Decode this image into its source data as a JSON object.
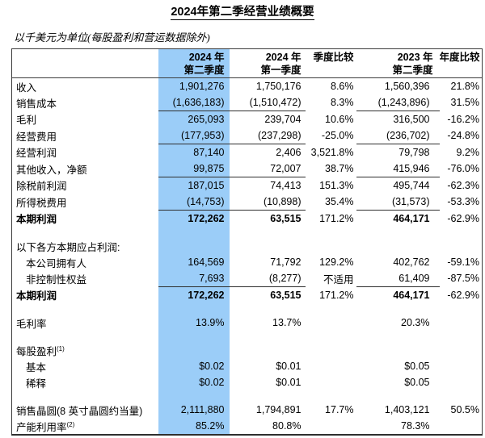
{
  "page": {
    "title": "2024年第二季经营业绩概要",
    "subtitle": "以千美元为单位(每股盈利和营运数据除外)"
  },
  "colors": {
    "highlight_blue": "#9BCDF8",
    "table_border": "#3c3c3c",
    "text": "#000000"
  },
  "table": {
    "columns": [
      {
        "id": "row-label",
        "header_line1": "",
        "header_line2": ""
      },
      {
        "id": "q2-2024",
        "header_line1": "2024 年",
        "header_line2": "第二季度",
        "highlight": true
      },
      {
        "id": "q1-2024",
        "header_line1": "2024 年",
        "header_line2": "第一季度"
      },
      {
        "id": "qoq-change",
        "header_line1": "季度比较",
        "header_line2": ""
      },
      {
        "id": "q2-2023",
        "header_line1": "2023 年",
        "header_line2": "第二季度"
      },
      {
        "id": "yoy-change",
        "header_line1": "年度比较",
        "header_line2": ""
      }
    ],
    "rows": [
      {
        "label": "收入",
        "values": [
          "1,901,276",
          "1,750,176",
          "8.6%",
          "1,560,396",
          "21.8%"
        ]
      },
      {
        "label": "销售成本",
        "underline": true,
        "values": [
          "(1,636,183)",
          "(1,510,472)",
          "8.3%",
          "(1,243,896)",
          "31.5%"
        ]
      },
      {
        "label": "毛利",
        "values": [
          "265,093",
          "239,704",
          "10.6%",
          "316,500",
          "-16.2%"
        ]
      },
      {
        "label": "经营费用",
        "underline": true,
        "values": [
          "(177,953)",
          "(237,298)",
          "-25.0%",
          "(236,702)",
          "-24.8%"
        ]
      },
      {
        "label": "经营利润",
        "values": [
          "87,140",
          "2,406",
          "3,521.8%",
          "79,798",
          "9.2%"
        ]
      },
      {
        "label": "其他收入，净额",
        "underline": true,
        "values": [
          "99,875",
          "72,007",
          "38.7%",
          "415,946",
          "-76.0%"
        ]
      },
      {
        "label": "除税前利润",
        "values": [
          "187,015",
          "74,413",
          "151.3%",
          "495,744",
          "-62.3%"
        ]
      },
      {
        "label": "所得税费用",
        "underline": true,
        "values": [
          "(14,753)",
          "(10,898)",
          "35.4%",
          "(31,573)",
          "-53.3%"
        ]
      },
      {
        "label": "本期利润",
        "bold": true,
        "values": [
          "172,262",
          "63,515",
          "171.2%",
          "464,171",
          "-62.9%"
        ]
      },
      {
        "blank": true
      },
      {
        "label": "以下各方本期应占利润:",
        "values": [
          "",
          "",
          "",
          "",
          ""
        ]
      },
      {
        "label": "本公司拥有人",
        "indent": true,
        "values": [
          "164,569",
          "71,792",
          "129.2%",
          "402,762",
          "-59.1%"
        ]
      },
      {
        "label": "非控制性权益",
        "indent": true,
        "underline": true,
        "values": [
          "7,693",
          "(8,277)",
          "不适用",
          "61,409",
          "-87.5%"
        ]
      },
      {
        "label": "本期利润",
        "bold": true,
        "values": [
          "172,262",
          "63,515",
          "171.2%",
          "464,171",
          "-62.9%"
        ]
      },
      {
        "blank": true
      },
      {
        "label": "毛利率",
        "values": [
          "13.9%",
          "13.7%",
          "",
          "20.3%",
          ""
        ]
      },
      {
        "blank": true
      },
      {
        "label": "每股盈利",
        "sup": "(1)",
        "values": [
          "",
          "",
          "",
          "",
          ""
        ]
      },
      {
        "label": "基本",
        "indent": true,
        "values": [
          "$0.02",
          "$0.01",
          "",
          "$0.05",
          ""
        ]
      },
      {
        "label": "稀释",
        "indent": true,
        "values": [
          "$0.02",
          "$0.01",
          "",
          "$0.05",
          ""
        ]
      },
      {
        "blank": true
      },
      {
        "label": "销售晶圆(8 英寸晶圆约当量)",
        "values": [
          "2,111,880",
          "1,794,891",
          "17.7%",
          "1,403,121",
          "50.5%"
        ]
      },
      {
        "label": "产能利用率",
        "sup": "(2)",
        "values": [
          "85.2%",
          "80.8%",
          "",
          "78.3%",
          ""
        ]
      }
    ]
  }
}
